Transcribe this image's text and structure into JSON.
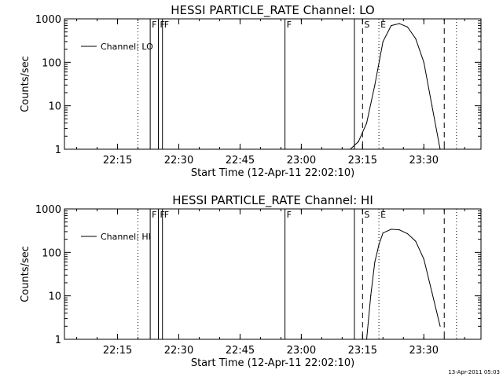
{
  "footer": {
    "timestamp": "13-Apr-2011 05:03"
  },
  "style": {
    "line_color": "#000000",
    "background": "#ffffff"
  },
  "chart_data": [
    {
      "type": "line",
      "title": "HESSI PARTICLE_RATE Channel: LO",
      "xlabel": "Start Time (12-Apr-11 22:02:10)",
      "ylabel": "Counts/sec",
      "yscale": "log",
      "ylim": [
        1,
        1000
      ],
      "xlim": [
        "22:02",
        "23:44"
      ],
      "xticks": [
        "22:15",
        "22:30",
        "22:45",
        "23:00",
        "23:15",
        "23:30"
      ],
      "yticks": [
        "1",
        "10",
        "100",
        "1000"
      ],
      "grid": false,
      "legend": {
        "position": "top-left",
        "entries": [
          "Channel: LO"
        ]
      },
      "series": [
        {
          "name": "Channel: LO",
          "x": [
            "23:12",
            "23:14",
            "23:16",
            "23:18",
            "23:20",
            "23:22",
            "23:24",
            "23:26",
            "23:28",
            "23:30",
            "23:32",
            "23:34"
          ],
          "values": [
            1,
            1.5,
            4,
            30,
            300,
            700,
            780,
            650,
            350,
            100,
            10,
            1
          ]
        }
      ],
      "markers": [
        {
          "time": "22:20",
          "style": "dotted",
          "label": ""
        },
        {
          "time": "22:23",
          "style": "solid",
          "label": "F"
        },
        {
          "time": "22:25",
          "style": "solid",
          "label": "F"
        },
        {
          "time": "22:26",
          "style": "solid",
          "label": "F"
        },
        {
          "time": "22:56",
          "style": "solid",
          "label": "F"
        },
        {
          "time": "23:13",
          "style": "solid",
          "label": ""
        },
        {
          "time": "23:15",
          "style": "dashed",
          "label": "S"
        },
        {
          "time": "23:19",
          "style": "dotted",
          "label": "E"
        },
        {
          "time": "23:35",
          "style": "dashed",
          "label": ""
        },
        {
          "time": "23:38",
          "style": "dotted",
          "label": ""
        }
      ]
    },
    {
      "type": "line",
      "title": "HESSI PARTICLE_RATE Channel: HI",
      "xlabel": "Start Time (12-Apr-11 22:02:10)",
      "ylabel": "Counts/sec",
      "yscale": "log",
      "ylim": [
        1,
        1000
      ],
      "xlim": [
        "22:02",
        "23:44"
      ],
      "xticks": [
        "22:15",
        "22:30",
        "22:45",
        "23:00",
        "23:15",
        "23:30"
      ],
      "yticks": [
        "1",
        "10",
        "100",
        "1000"
      ],
      "grid": false,
      "legend": {
        "position": "top-left",
        "entries": [
          "Channel: HI"
        ]
      },
      "series": [
        {
          "name": "Channel: HI",
          "x": [
            "23:16",
            "23:17",
            "23:18",
            "23:19",
            "23:20",
            "23:22",
            "23:24",
            "23:26",
            "23:28",
            "23:30",
            "23:32",
            "23:34"
          ],
          "values": [
            1,
            10,
            60,
            150,
            280,
            340,
            330,
            270,
            180,
            70,
            12,
            2
          ]
        }
      ],
      "markers": [
        {
          "time": "22:20",
          "style": "dotted",
          "label": ""
        },
        {
          "time": "22:23",
          "style": "solid",
          "label": "F"
        },
        {
          "time": "22:25",
          "style": "solid",
          "label": "F"
        },
        {
          "time": "22:26",
          "style": "solid",
          "label": "F"
        },
        {
          "time": "22:56",
          "style": "solid",
          "label": "F"
        },
        {
          "time": "23:13",
          "style": "solid",
          "label": ""
        },
        {
          "time": "23:15",
          "style": "dashed",
          "label": "S"
        },
        {
          "time": "23:19",
          "style": "dotted",
          "label": "E"
        },
        {
          "time": "23:35",
          "style": "dashed",
          "label": ""
        },
        {
          "time": "23:38",
          "style": "dotted",
          "label": ""
        }
      ]
    }
  ]
}
